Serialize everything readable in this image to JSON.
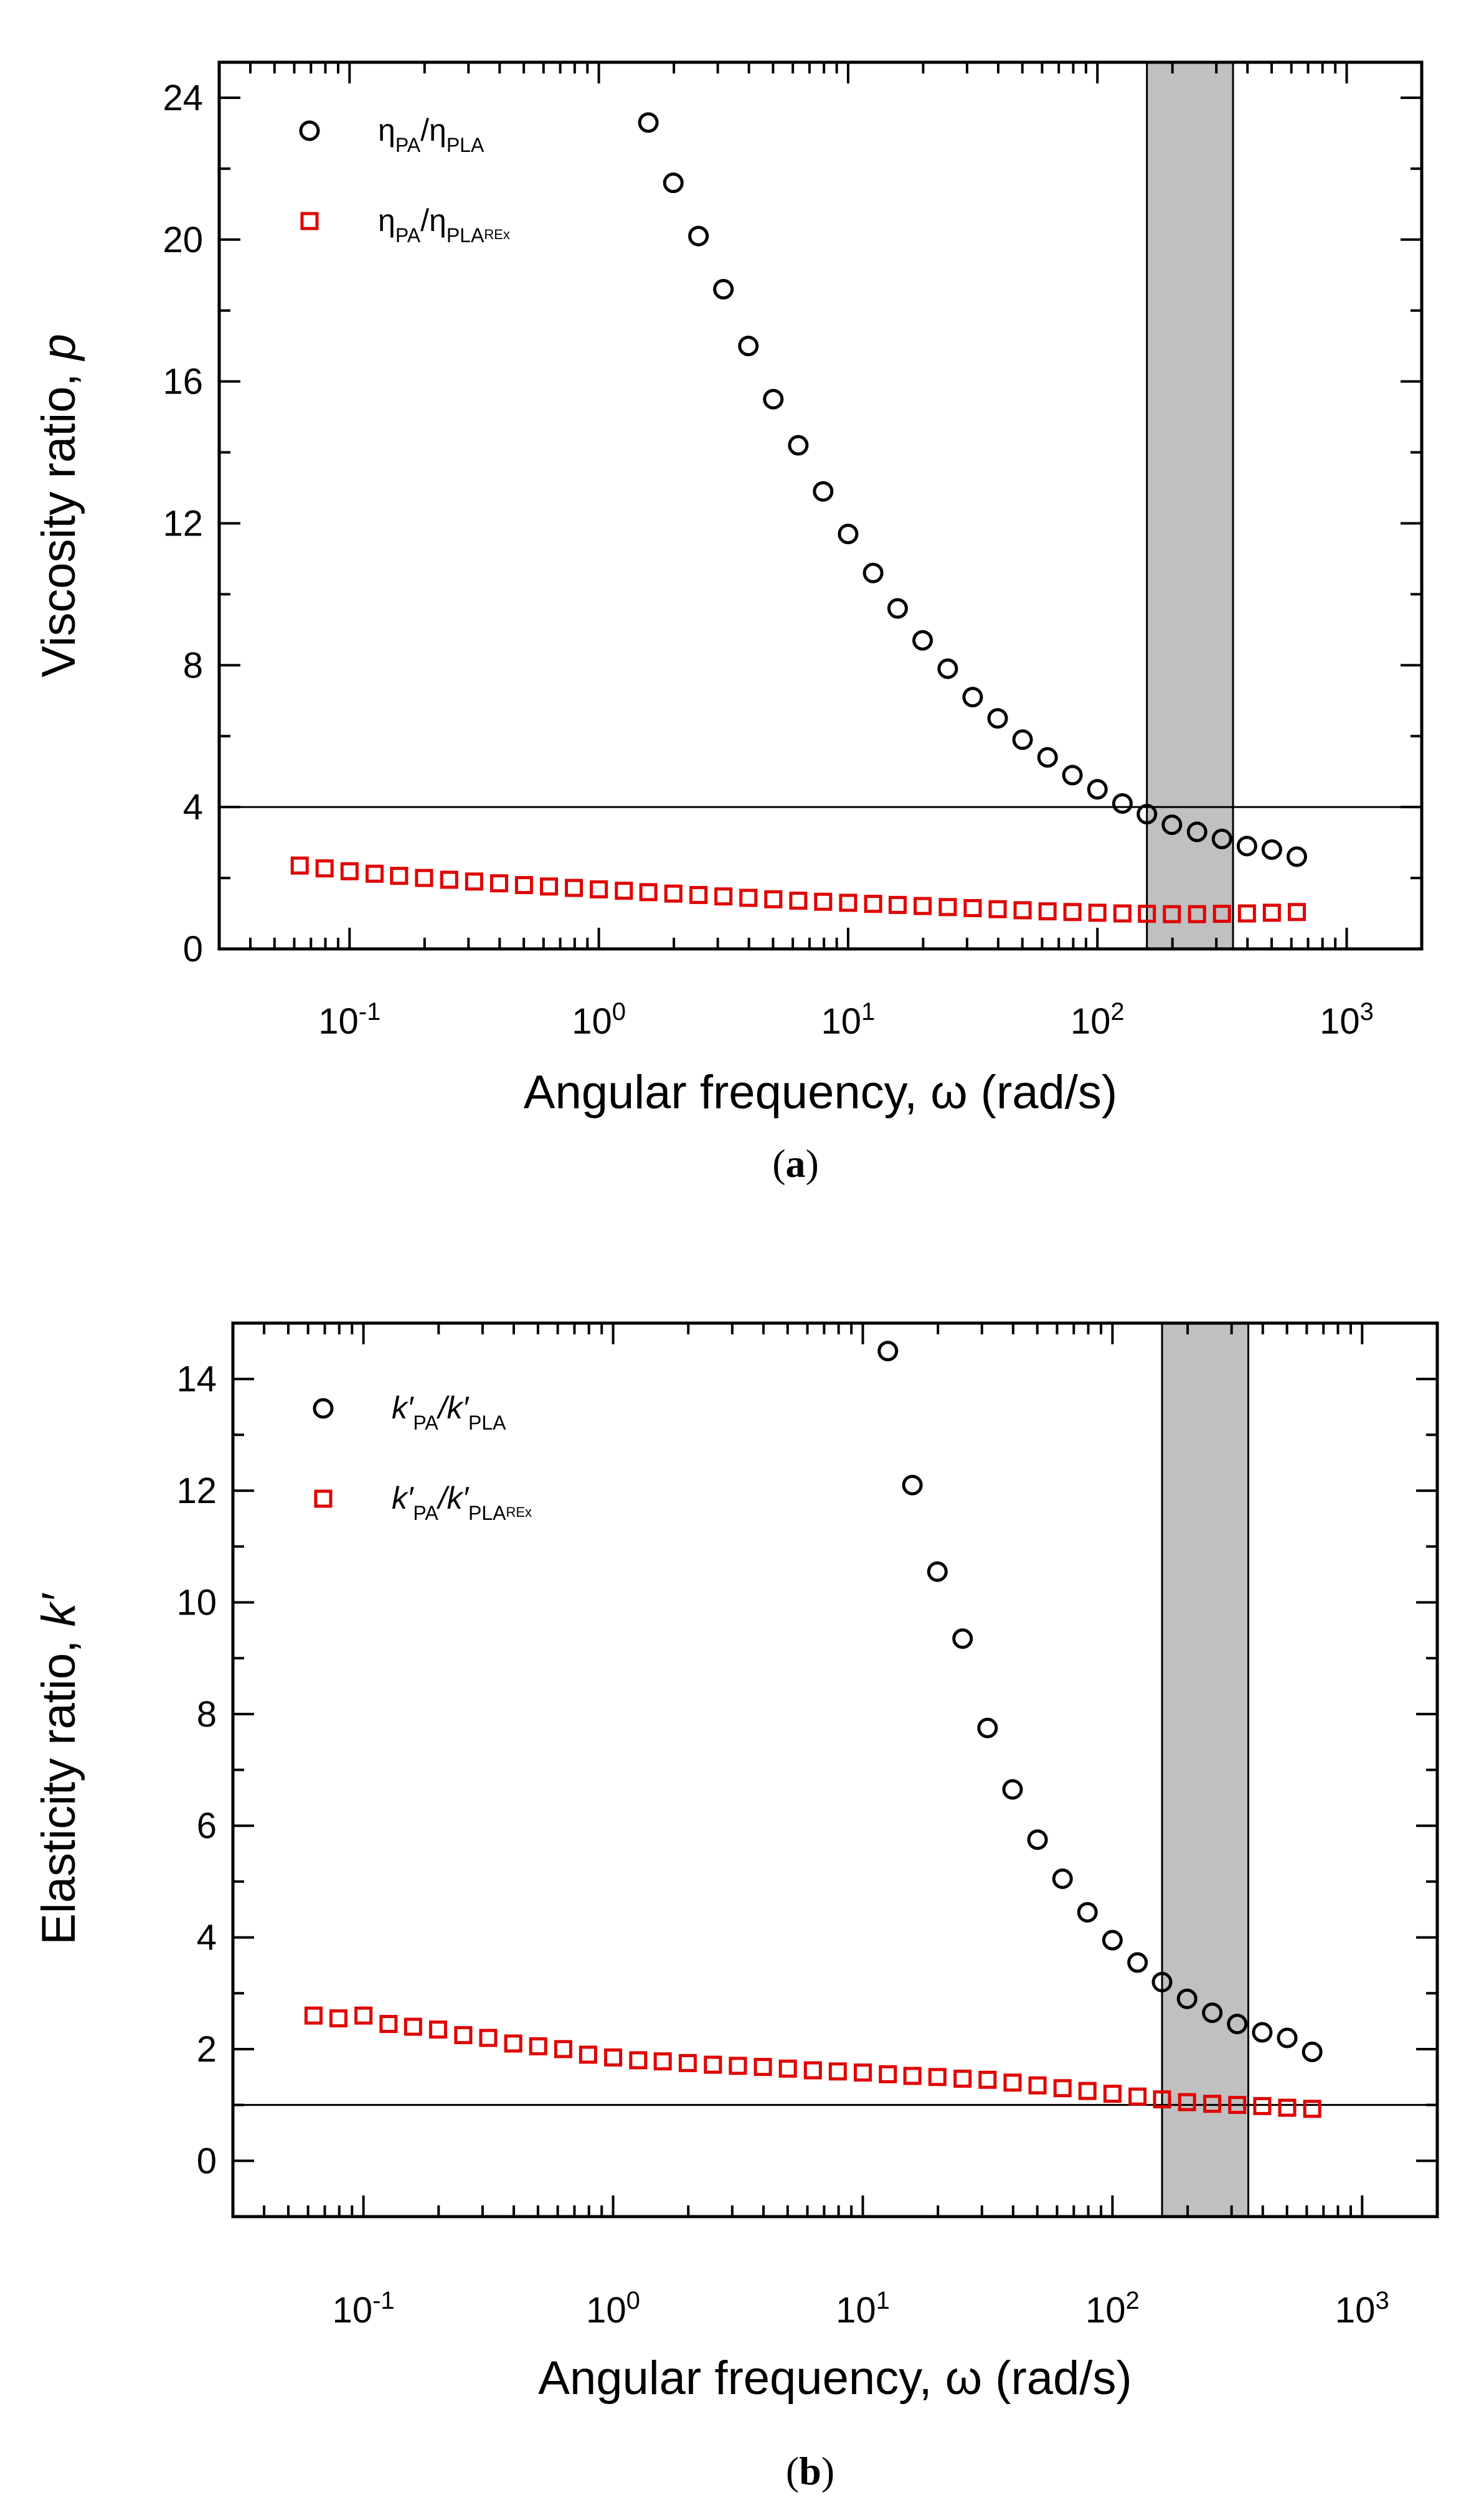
{
  "colors": {
    "series_black": "#000000",
    "series_red": "#e00000",
    "shade": "#c0c0c0"
  },
  "chart_data": [
    {
      "panel": "a",
      "caption_open": "(",
      "caption_letter": "a",
      "caption_close": ")",
      "type": "scatter",
      "xscale": "log",
      "xlim": [
        0.03,
        2000
      ],
      "ylim": [
        0,
        25
      ],
      "ylabel_main": "Viscosity ratio, ",
      "ylabel_var": "p",
      "xlabel": "Angular frequency, ω (rad/s)",
      "x_ticks": [
        {
          "value": 0.1,
          "base": "10",
          "exp": "-1"
        },
        {
          "value": 1,
          "base": "10",
          "exp": "0"
        },
        {
          "value": 10,
          "base": "10",
          "exp": "1"
        },
        {
          "value": 100,
          "base": "10",
          "exp": "2"
        },
        {
          "value": 1000,
          "base": "10",
          "exp": "3"
        }
      ],
      "y_ticks": [
        0,
        4,
        8,
        12,
        16,
        20,
        24
      ],
      "hline": 4,
      "shaded_band": [
        158,
        350
      ],
      "legend_position": "top-left",
      "series": [
        {
          "name": "ηPA/ηPLA",
          "legend_parts": [
            "η",
            "PA",
            "/η",
            "PLA",
            ""
          ],
          "marker": "circle",
          "color": "#000000",
          "x": [
            1.58,
            1.99,
            2.51,
            3.16,
            3.98,
            5.01,
            6.31,
            7.94,
            10,
            12.6,
            15.8,
            19.9,
            25.1,
            31.6,
            39.8,
            50.1,
            63.1,
            79.4,
            100,
            126,
            158,
            199,
            251,
            316,
            398,
            501,
            631
          ],
          "y": [
            23.3,
            21.6,
            20.1,
            18.6,
            17.0,
            15.5,
            14.2,
            12.9,
            11.7,
            10.6,
            9.6,
            8.7,
            7.9,
            7.1,
            6.5,
            5.9,
            5.4,
            4.9,
            4.5,
            4.1,
            3.8,
            3.5,
            3.3,
            3.1,
            2.9,
            2.8,
            2.6
          ]
        },
        {
          "name": "ηPA/ηPLAREx",
          "legend_parts": [
            "η",
            "PA",
            "/η",
            "PLA",
            "REx"
          ],
          "marker": "square",
          "color": "#e00000",
          "x": [
            0.0631,
            0.0794,
            0.1,
            0.126,
            0.158,
            0.199,
            0.251,
            0.316,
            0.398,
            0.501,
            0.631,
            0.794,
            1,
            1.26,
            1.58,
            1.99,
            2.51,
            3.16,
            3.98,
            5.01,
            6.31,
            7.94,
            10,
            12.6,
            15.8,
            19.9,
            25.1,
            31.6,
            39.8,
            50.1,
            63.1,
            79.4,
            100,
            126,
            158,
            199,
            251,
            316,
            398,
            501,
            631
          ],
          "y": [
            2.35,
            2.27,
            2.19,
            2.12,
            2.06,
            2.0,
            1.95,
            1.9,
            1.85,
            1.8,
            1.76,
            1.72,
            1.68,
            1.64,
            1.6,
            1.56,
            1.52,
            1.48,
            1.44,
            1.4,
            1.36,
            1.33,
            1.3,
            1.27,
            1.24,
            1.21,
            1.18,
            1.15,
            1.12,
            1.09,
            1.06,
            1.04,
            1.02,
            1.0,
            0.99,
            0.98,
            0.98,
            0.99,
            1.0,
            1.02,
            1.04
          ]
        }
      ]
    },
    {
      "panel": "b",
      "caption_open": "(",
      "caption_letter": "b",
      "caption_close": ")",
      "type": "scatter",
      "xscale": "log",
      "xlim": [
        0.03,
        2000
      ],
      "ylim": [
        -1,
        15
      ],
      "ylabel_main": "Elasticity ratio, ",
      "ylabel_var": "k′",
      "xlabel": "Angular frequency, ω (rad/s)",
      "x_ticks": [
        {
          "value": 0.1,
          "base": "10",
          "exp": "-1"
        },
        {
          "value": 1,
          "base": "10",
          "exp": "0"
        },
        {
          "value": 10,
          "base": "10",
          "exp": "1"
        },
        {
          "value": 100,
          "base": "10",
          "exp": "2"
        },
        {
          "value": 1000,
          "base": "10",
          "exp": "3"
        }
      ],
      "y_ticks": [
        0,
        2,
        4,
        6,
        8,
        10,
        12,
        14
      ],
      "hline": 1,
      "shaded_band": [
        158,
        350
      ],
      "legend_position": "top-left",
      "series": [
        {
          "name": "k′PA/k′PLA",
          "legend_parts": [
            "k′",
            "PA",
            "/k′",
            "PLA",
            ""
          ],
          "marker": "circle",
          "color": "#000000",
          "x": [
            12.6,
            15.8,
            19.9,
            25.1,
            31.6,
            39.8,
            50.1,
            63.1,
            79.4,
            100,
            126,
            158,
            199,
            251,
            316,
            398,
            501,
            631
          ],
          "y": [
            14.5,
            12.1,
            10.55,
            9.35,
            7.75,
            6.65,
            5.75,
            5.05,
            4.45,
            3.95,
            3.55,
            3.2,
            2.9,
            2.65,
            2.45,
            2.3,
            2.2,
            1.95
          ]
        },
        {
          "name": "k′PA/k′PLAREx",
          "legend_parts": [
            "k′",
            "PA",
            "/k′",
            "PLA",
            "REx"
          ],
          "marker": "square",
          "color": "#e00000",
          "x": [
            0.0631,
            0.0794,
            0.1,
            0.126,
            0.158,
            0.199,
            0.251,
            0.316,
            0.398,
            0.501,
            0.631,
            0.794,
            1,
            1.26,
            1.58,
            1.99,
            2.51,
            3.16,
            3.98,
            5.01,
            6.31,
            7.94,
            10,
            12.6,
            15.8,
            19.9,
            25.1,
            31.6,
            39.8,
            50.1,
            63.1,
            79.4,
            100,
            126,
            158,
            199,
            251,
            316,
            398,
            501,
            631
          ],
          "y": [
            2.6,
            2.55,
            2.6,
            2.45,
            2.4,
            2.35,
            2.25,
            2.2,
            2.1,
            2.05,
            2.0,
            1.9,
            1.85,
            1.8,
            1.78,
            1.75,
            1.72,
            1.7,
            1.68,
            1.65,
            1.62,
            1.6,
            1.58,
            1.55,
            1.52,
            1.5,
            1.47,
            1.45,
            1.4,
            1.35,
            1.3,
            1.25,
            1.2,
            1.15,
            1.1,
            1.05,
            1.02,
            1.0,
            0.98,
            0.95,
            0.93
          ]
        }
      ]
    }
  ]
}
